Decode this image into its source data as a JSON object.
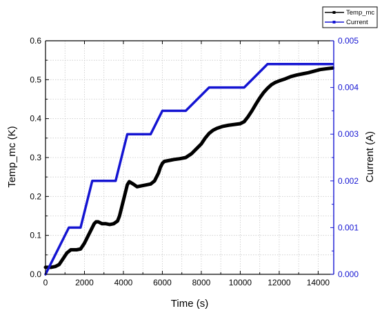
{
  "chart_data": {
    "type": "line",
    "title": "",
    "xlabel": "Time (s)",
    "ylabel_left": "Temp_mc (K)",
    "ylabel_right": "Current (A)",
    "xlim": [
      0,
      14800
    ],
    "ylim_left": [
      0,
      0.6
    ],
    "ylim_right": [
      0,
      0.005
    ],
    "x_ticks": [
      "0",
      "2000",
      "4000",
      "6000",
      "8000",
      "10000",
      "12000",
      "14000"
    ],
    "y_left_ticks": [
      "0.0",
      "0.1",
      "0.2",
      "0.3",
      "0.4",
      "0.5",
      "0.6"
    ],
    "y_right_ticks": [
      "0.000",
      "0.001",
      "0.002",
      "0.003",
      "0.004",
      "0.005"
    ],
    "grid": true,
    "legend_position": "top-right, outside plot",
    "colors": {
      "temp": "#000000",
      "current": "#1414d2",
      "right_axis": "#1414d2",
      "grid": "#c8c8c8"
    },
    "series": [
      {
        "name": "Temp_mc",
        "axis": "left",
        "x": [
          0,
          300,
          500,
          700,
          900,
          1100,
          1300,
          1600,
          1800,
          2000,
          2200,
          2400,
          2500,
          2600,
          2700,
          2900,
          3100,
          3300,
          3500,
          3700,
          3800,
          3900,
          4000,
          4100,
          4200,
          4300,
          4500,
          4700,
          5000,
          5200,
          5400,
          5600,
          5800,
          5900,
          6000,
          6100,
          6300,
          6600,
          6900,
          7200,
          7500,
          7800,
          8000,
          8200,
          8400,
          8600,
          8800,
          9100,
          9400,
          9700,
          10000,
          10200,
          10400,
          10600,
          10800,
          11000,
          11200,
          11400,
          11600,
          11800,
          12000,
          12300,
          12600,
          12900,
          13200,
          13500,
          13800,
          14100,
          14400,
          14750
        ],
        "y": [
          0.018,
          0.018,
          0.02,
          0.025,
          0.04,
          0.055,
          0.063,
          0.063,
          0.065,
          0.08,
          0.1,
          0.12,
          0.13,
          0.135,
          0.135,
          0.13,
          0.13,
          0.128,
          0.13,
          0.137,
          0.15,
          0.17,
          0.19,
          0.21,
          0.23,
          0.238,
          0.232,
          0.225,
          0.228,
          0.23,
          0.232,
          0.24,
          0.26,
          0.275,
          0.285,
          0.29,
          0.292,
          0.295,
          0.297,
          0.3,
          0.31,
          0.325,
          0.335,
          0.35,
          0.362,
          0.37,
          0.375,
          0.38,
          0.383,
          0.385,
          0.387,
          0.392,
          0.405,
          0.42,
          0.437,
          0.453,
          0.467,
          0.478,
          0.487,
          0.493,
          0.497,
          0.502,
          0.508,
          0.512,
          0.515,
          0.518,
          0.522,
          0.526,
          0.528,
          0.53
        ]
      },
      {
        "name": "Current",
        "axis": "right",
        "x": [
          0,
          1200,
          1800,
          2400,
          3600,
          4200,
          5400,
          6000,
          7200,
          8400,
          10200,
          11400,
          14750
        ],
        "y": [
          0,
          0.001,
          0.001,
          0.002,
          0.002,
          0.003,
          0.003,
          0.0035,
          0.0035,
          0.004,
          0.004,
          0.0045,
          0.0045
        ]
      }
    ]
  }
}
